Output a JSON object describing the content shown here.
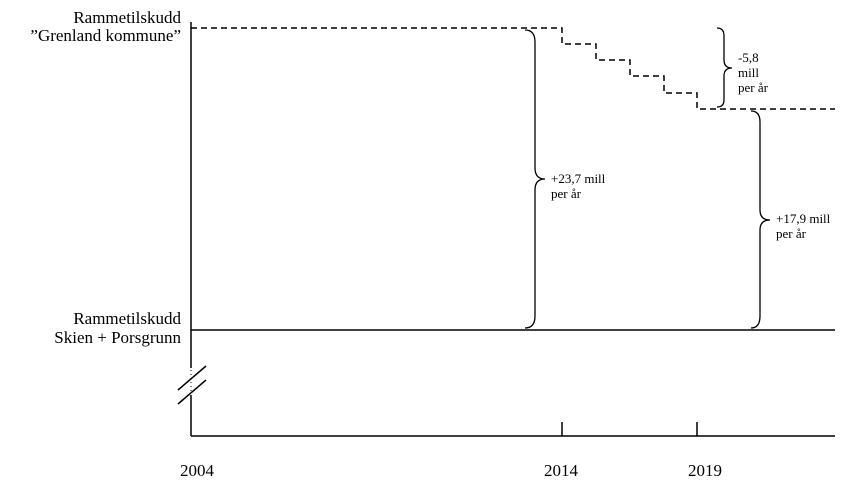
{
  "labels": {
    "top_title": "Rammetilskudd",
    "top_subtitle": "”Grenland kommune”",
    "bottom_title": "Rammetilskudd",
    "bottom_subtitle": "Skien + Porsgrunn"
  },
  "annotations": {
    "gain_total_line1": "+23,7 mill",
    "gain_total_line2": "per år",
    "reduction_line1": "-5,8",
    "reduction_line2": "mill",
    "reduction_line3": "per år",
    "gain_net_line1": "+17,9 mill",
    "gain_net_line2": "per år"
  },
  "x_axis": {
    "ticks": [
      "2004",
      "2014",
      "2019"
    ]
  }
}
